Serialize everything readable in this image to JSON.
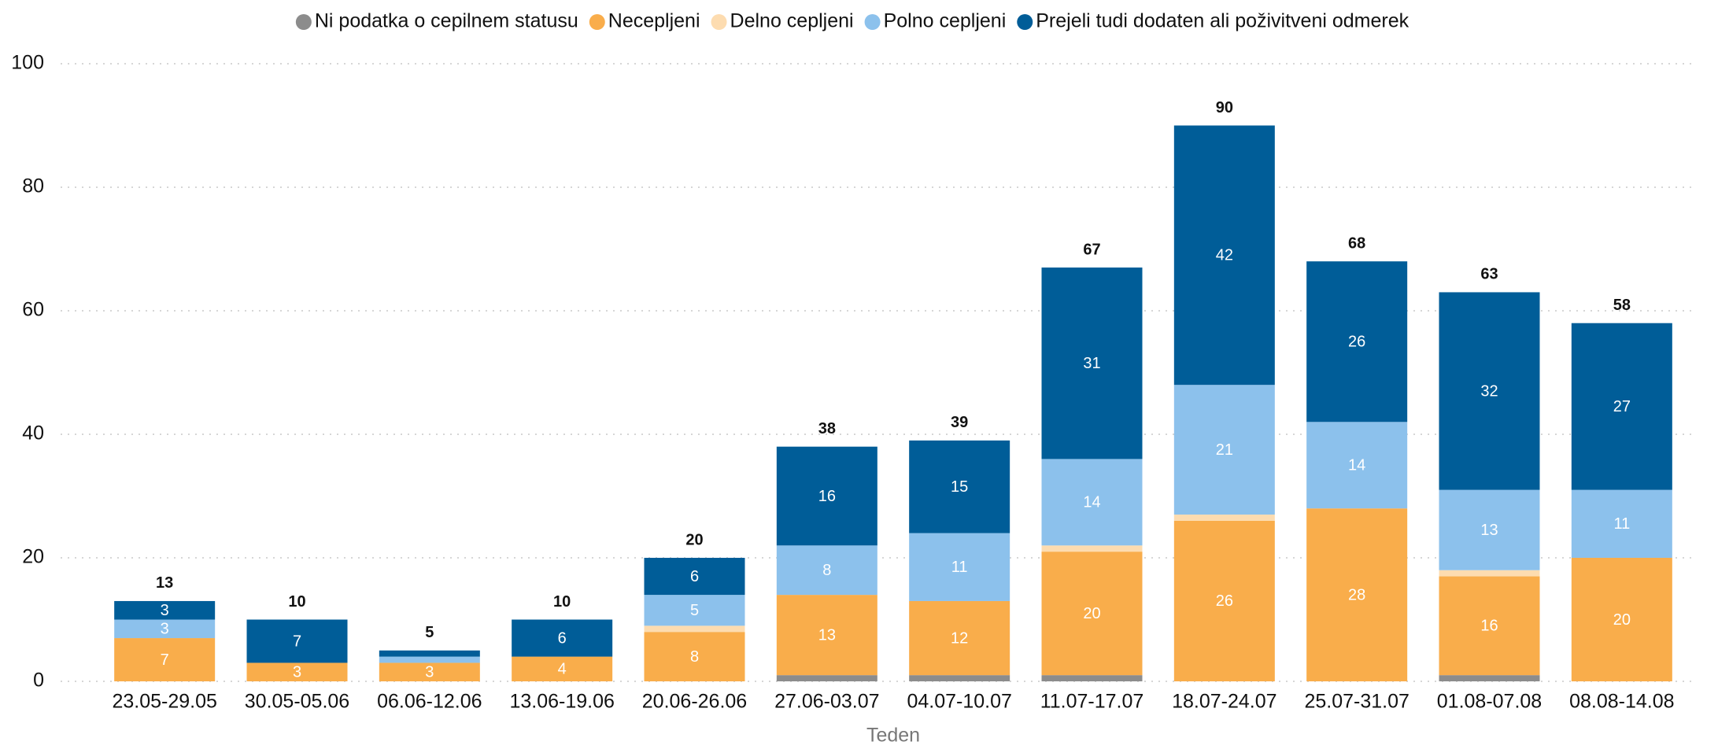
{
  "chart_data": {
    "type": "bar",
    "stacked": true,
    "x_label": "Teden",
    "categories": [
      "23.05-29.05",
      "30.05-05.06",
      "06.06-12.06",
      "13.06-19.06",
      "20.06-26.06",
      "27.06-03.07",
      "04.07-10.07",
      "11.07-17.07",
      "18.07-24.07",
      "25.07-31.07",
      "01.08-07.08",
      "08.08-14.08"
    ],
    "series": [
      {
        "name": "Ni podatka o cepilnem statusu",
        "color": "#8c8c8c",
        "values": [
          0,
          0,
          0,
          0,
          0,
          1,
          1,
          1,
          0,
          0,
          1,
          0
        ],
        "value_labels": [
          null,
          null,
          null,
          null,
          null,
          null,
          null,
          null,
          null,
          null,
          null,
          null
        ]
      },
      {
        "name": "Necepljeni",
        "color": "#f9ad4b",
        "values": [
          7,
          3,
          3,
          4,
          8,
          13,
          12,
          20,
          26,
          28,
          16,
          20
        ],
        "value_labels": [
          "7",
          "3",
          "3",
          "4",
          "8",
          "13",
          "12",
          "20",
          "26",
          "28",
          "16",
          "20"
        ]
      },
      {
        "name": "Delno cepljeni",
        "color": "#fddcb0",
        "values": [
          0,
          0,
          0,
          0,
          1,
          0,
          0,
          1,
          1,
          0,
          1,
          0
        ],
        "value_labels": [
          null,
          null,
          null,
          null,
          null,
          null,
          null,
          null,
          null,
          null,
          null,
          null
        ]
      },
      {
        "name": "Polno cepljeni",
        "color": "#8cc1ec",
        "values": [
          3,
          0,
          1,
          0,
          5,
          8,
          11,
          14,
          21,
          14,
          13,
          11
        ],
        "value_labels": [
          "3",
          null,
          null,
          null,
          "5",
          "8",
          "11",
          "14",
          "21",
          "14",
          "13",
          "11"
        ]
      },
      {
        "name": "Prejeli tudi dodaten ali poživitveni odmerek",
        "color": "#005d98",
        "values": [
          3,
          7,
          1,
          6,
          6,
          16,
          15,
          31,
          42,
          26,
          32,
          27
        ],
        "value_labels": [
          "3",
          "7",
          null,
          "6",
          "6",
          "16",
          "15",
          "31",
          "42",
          "26",
          "32",
          "27"
        ]
      }
    ],
    "totals": [
      13,
      10,
      5,
      10,
      20,
      38,
      39,
      67,
      90,
      68,
      63,
      58
    ],
    "ylim": [
      0,
      100
    ],
    "yticks": [
      0,
      20,
      40,
      60,
      80,
      100
    ],
    "grid": true,
    "legend": "top"
  }
}
